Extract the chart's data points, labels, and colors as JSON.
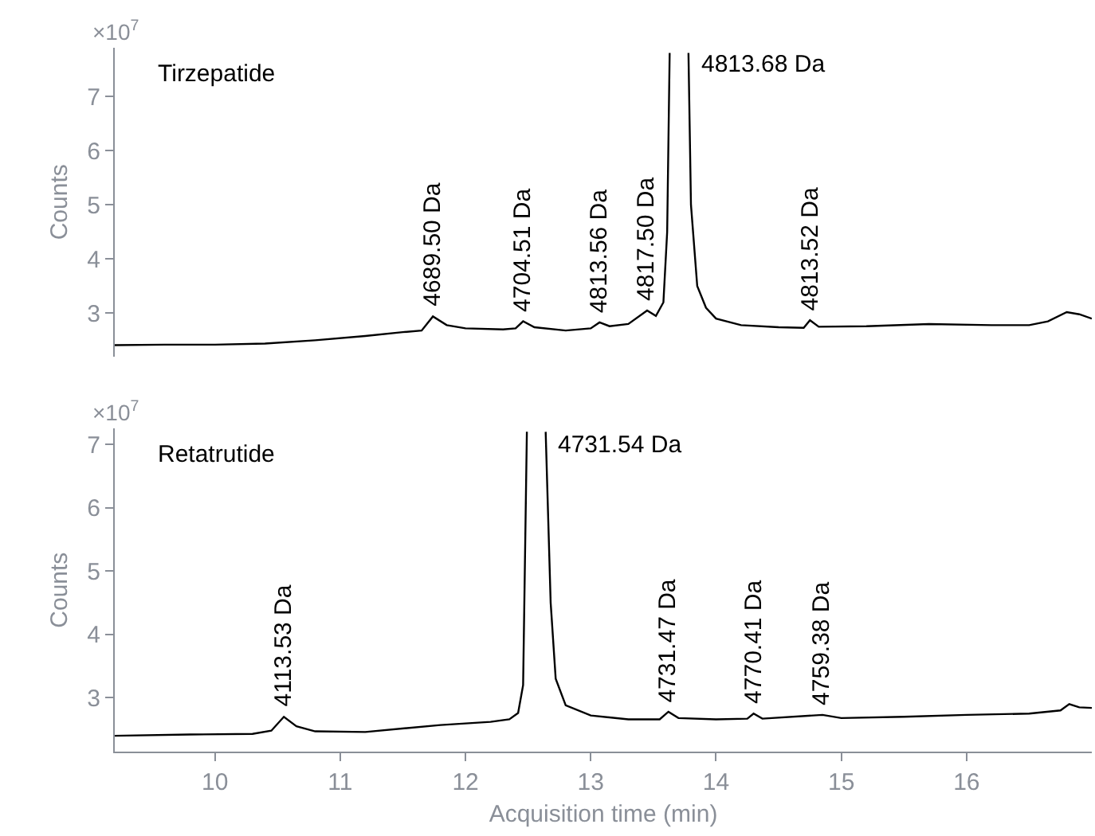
{
  "chart_data": [
    {
      "type": "line",
      "title": "Tirzepatide",
      "ylabel": "Counts",
      "tick_labels": "y",
      "xlim": [
        9.2,
        17.0
      ],
      "xticks": [
        10,
        11,
        12,
        13,
        14,
        15,
        16
      ],
      "ylim": [
        2.2,
        7.9
      ],
      "yticks": [
        3,
        4,
        5,
        6,
        7
      ],
      "annotations": [
        "×10$^{7}$",
        {
          "text": "4689.50 Da",
          "x": 11.74,
          "y": 2.94
        },
        {
          "text": "4704.51 Da",
          "x": 12.46,
          "y": 2.85
        },
        {
          "text": "4813.56 Da",
          "x": 13.07,
          "y": 2.83
        },
        {
          "text": "4817.50 Da",
          "x": 13.45,
          "y": 3.05
        },
        "4813.68 Da",
        {
          "text": "4813.52 Da",
          "x": 14.75,
          "y": 2.87
        }
      ],
      "series": [
        {
          "color": "#000000",
          "x": [
            9.2,
            9.6,
            10.0,
            10.4,
            10.8,
            11.2,
            11.5,
            11.65,
            11.74,
            11.85,
            12.0,
            12.3,
            12.4,
            12.46,
            12.55,
            12.8,
            13.0,
            13.07,
            13.15,
            13.3,
            13.45,
            13.52,
            13.58,
            13.61,
            13.63,
            13.7,
            13.78,
            13.8,
            13.85,
            13.92,
            14.0,
            14.2,
            14.5,
            14.7,
            14.75,
            14.82,
            15.2,
            15.7,
            16.2,
            16.5,
            16.65,
            16.8,
            16.9,
            17.0
          ],
          "values": [
            2.41,
            2.42,
            2.42,
            2.44,
            2.5,
            2.58,
            2.65,
            2.68,
            2.94,
            2.78,
            2.72,
            2.7,
            2.72,
            2.85,
            2.74,
            2.68,
            2.72,
            2.83,
            2.76,
            2.8,
            3.05,
            2.95,
            3.2,
            4.5,
            7.8,
            null,
            7.8,
            5.0,
            3.5,
            3.1,
            2.9,
            2.78,
            2.74,
            2.73,
            2.87,
            2.75,
            2.76,
            2.8,
            2.78,
            2.78,
            2.85,
            3.02,
            2.98,
            2.9
          ]
        }
      ]
    },
    {
      "type": "line",
      "title": "Retatrutide",
      "xlabel": "Acquisition time (min)",
      "ylabel": "Counts",
      "xlim": [
        9.2,
        17.0
      ],
      "xticks": [
        10,
        11,
        12,
        13,
        14,
        15,
        16
      ],
      "ylim": [
        2.15,
        7.25
      ],
      "yticks": [
        3,
        4,
        5,
        6,
        7
      ],
      "annotations": [
        "×10$^{7}$",
        {
          "text": "4113.53 Da",
          "x": 10.55,
          "y": 2.7
        },
        "4731.54 Da",
        {
          "text": "4731.47 Da",
          "x": 13.62,
          "y": 2.78
        },
        {
          "text": "4770.41 Da",
          "x": 14.3,
          "y": 2.75
        },
        {
          "text": "4759.38 Da",
          "x": 14.85,
          "y": 2.73
        }
      ],
      "series": [
        {
          "color": "#000000",
          "x": [
            9.2,
            9.8,
            10.3,
            10.45,
            10.55,
            10.65,
            10.8,
            11.2,
            11.8,
            12.2,
            12.35,
            12.42,
            12.46,
            12.49,
            12.56,
            12.64,
            12.68,
            12.72,
            12.8,
            13.0,
            13.3,
            13.55,
            13.62,
            13.7,
            14.0,
            14.25,
            14.3,
            14.37,
            14.85,
            15.0,
            15.5,
            16.0,
            16.5,
            16.75,
            16.82,
            16.9,
            17.0
          ],
          "values": [
            2.4,
            2.42,
            2.43,
            2.48,
            2.7,
            2.55,
            2.47,
            2.46,
            2.57,
            2.62,
            2.66,
            2.76,
            3.2,
            7.2,
            null,
            7.2,
            4.5,
            3.3,
            2.88,
            2.72,
            2.66,
            2.66,
            2.78,
            2.68,
            2.66,
            2.67,
            2.75,
            2.67,
            2.73,
            2.68,
            2.7,
            2.73,
            2.75,
            2.8,
            2.9,
            2.85,
            2.84
          ]
        }
      ]
    }
  ]
}
